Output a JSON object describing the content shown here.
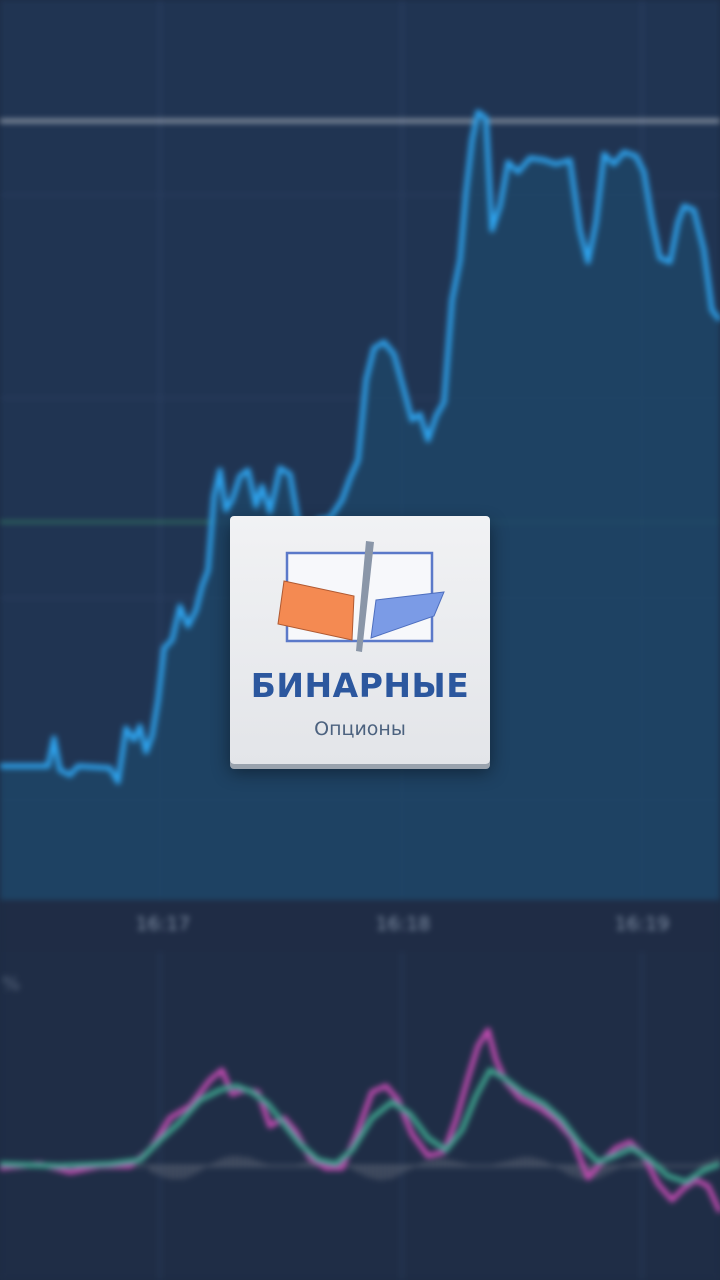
{
  "splash": {
    "title": "БИНАРНЫЕ",
    "subtitle": "Опционы",
    "logo_colors": {
      "left_flag": "#f48a52",
      "right_flag": "#7b9be6",
      "pole": "#8a96a8",
      "frame": "#5b79c9"
    }
  },
  "chart": {
    "x_tick_labels": [
      "16:17",
      "16:18",
      "16:19"
    ],
    "indicator_label": "%",
    "colors": {
      "background": "#1d2b44",
      "price_line": "#2ea5f0",
      "price_fill": "#1f4566",
      "level_line": "#a9b0bc",
      "green_level": "#3f9d6a",
      "osc_fast": "#c44bb2",
      "osc_slow": "#3fa890",
      "histogram": "#5a6272"
    }
  }
}
